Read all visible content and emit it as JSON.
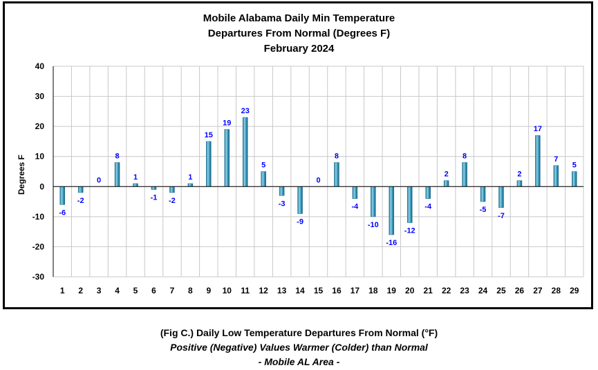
{
  "chart_data": {
    "type": "bar",
    "title": [
      "Mobile Alabama Daily Min Temperature",
      "Departures From Normal (Degrees F)",
      "February 2024"
    ],
    "xlabel": "",
    "ylabel": "Degrees F",
    "ylim": [
      -30,
      40
    ],
    "yticks": [
      40,
      30,
      20,
      10,
      0,
      -10,
      -20,
      -30
    ],
    "grid": true,
    "legend": "none",
    "categories": [
      "1",
      "2",
      "3",
      "4",
      "5",
      "6",
      "7",
      "8",
      "9",
      "10",
      "11",
      "12",
      "13",
      "14",
      "15",
      "16",
      "17",
      "18",
      "19",
      "20",
      "21",
      "22",
      "23",
      "24",
      "25",
      "26",
      "27",
      "28",
      "29"
    ],
    "values": [
      -6,
      -2,
      0,
      8,
      1,
      -1,
      -2,
      1,
      15,
      19,
      23,
      5,
      -3,
      -9,
      0,
      8,
      -4,
      -10,
      -16,
      -12,
      -4,
      2,
      8,
      -5,
      -7,
      2,
      17,
      7,
      5
    ],
    "colors": {
      "bar": "#3a9cc0",
      "bar_dark": "#1f6f8f",
      "bar_light": "#8fd3ea",
      "label": "#0000ff",
      "grid": "#c8c8c8"
    }
  },
  "caption": {
    "line1": "(Fig C.) Daily Low Temperature Departures From Normal (°F)",
    "line2": "Positive (Negative) Values Warmer (Colder) than Normal",
    "line3": "- Mobile AL Area -"
  }
}
